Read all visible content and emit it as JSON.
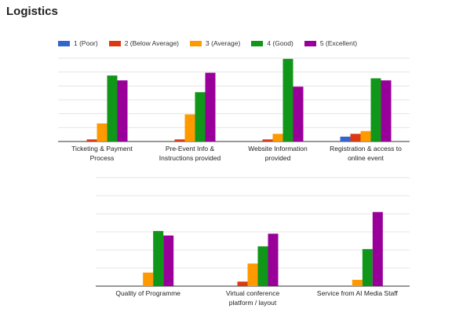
{
  "page": {
    "title": "Logistics"
  },
  "legend": [
    {
      "label": "1 (Poor)",
      "color": "#3366cc"
    },
    {
      "label": "2 (Below Average)",
      "color": "#dc3912"
    },
    {
      "label": "3 (Average)",
      "color": "#ff9900"
    },
    {
      "label": "4 (Good)",
      "color": "#109618"
    },
    {
      "label": "5 (Excellent)",
      "color": "#990099"
    }
  ],
  "chart_data": [
    {
      "type": "bar",
      "title": "",
      "xlabel": "",
      "ylabel": "",
      "ylim": [
        0,
        12
      ],
      "grid": true,
      "categories": [
        [
          "Ticketing & Payment",
          "Process"
        ],
        [
          "Pre-Event Info &",
          "Instructions provided"
        ],
        [
          "Website Information",
          "provided"
        ],
        [
          "Registration & access to",
          "online event"
        ]
      ],
      "series": [
        {
          "name": "1 (Poor)",
          "values": [
            0,
            0,
            0,
            0.7
          ]
        },
        {
          "name": "2 (Below Average)",
          "values": [
            0.3,
            0.3,
            0.3,
            1.1
          ]
        },
        {
          "name": "3 (Average)",
          "values": [
            2.6,
            3.9,
            1.1,
            1.5
          ]
        },
        {
          "name": "4 (Good)",
          "values": [
            9.5,
            7.1,
            11.9,
            9.1
          ]
        },
        {
          "name": "5 (Excellent)",
          "values": [
            8.8,
            9.9,
            7.9,
            8.8
          ]
        }
      ]
    },
    {
      "type": "bar",
      "title": "",
      "xlabel": "",
      "ylabel": "",
      "ylim": [
        0,
        12
      ],
      "grid": true,
      "categories": [
        [
          "Quality of Programme"
        ],
        [
          "Virtual conference",
          "platform / layout"
        ],
        [
          "Service from AI Media Staff"
        ]
      ],
      "series": [
        {
          "name": "1 (Poor)",
          "values": [
            0,
            0,
            0
          ]
        },
        {
          "name": "2 (Below Average)",
          "values": [
            0,
            0.5,
            0
          ]
        },
        {
          "name": "3 (Average)",
          "values": [
            1.5,
            2.5,
            0.7
          ]
        },
        {
          "name": "4 (Good)",
          "values": [
            6.1,
            4.4,
            4.1
          ]
        },
        {
          "name": "5 (Excellent)",
          "values": [
            5.6,
            5.8,
            8.2
          ]
        }
      ]
    }
  ]
}
